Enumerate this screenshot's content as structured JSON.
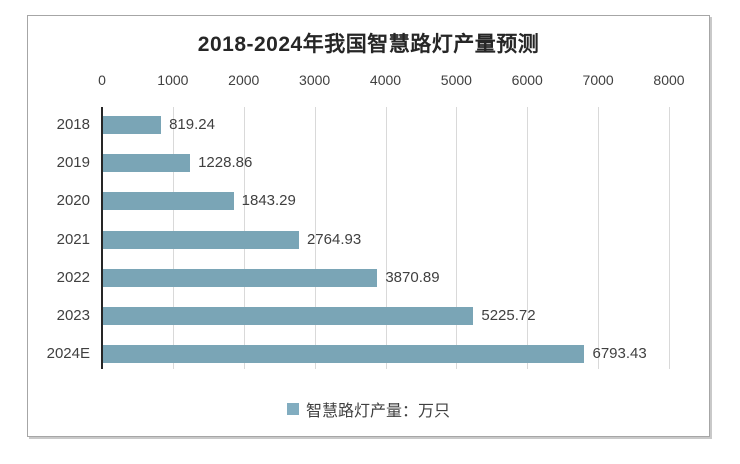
{
  "chart_data": {
    "type": "bar",
    "orientation": "horizontal",
    "title": "2018-2024年我国智慧路灯产量预测",
    "categories": [
      "2018",
      "2019",
      "2020",
      "2021",
      "2022",
      "2023",
      "2024E"
    ],
    "values": [
      819.24,
      1228.86,
      1843.29,
      2764.93,
      3870.89,
      5225.72,
      6793.43
    ],
    "value_decimals": 2,
    "series_name": "智慧路灯产量：万只",
    "x_ticks": [
      0,
      1000,
      2000,
      3000,
      4000,
      5000,
      6000,
      7000,
      8000
    ],
    "xlim": [
      0,
      8000
    ],
    "grid": "vertical-gridlines-on",
    "legend_position": "bottom",
    "data_labels": "outside-end",
    "colors": {
      "bar": "#7aa5b6",
      "legend_marker": "#82adc0",
      "gridline": "#d9d9d9",
      "axis_line": "#262626",
      "title_text": "#262626",
      "label_text": "#404040",
      "frame_border": "#a6a6a6"
    }
  }
}
